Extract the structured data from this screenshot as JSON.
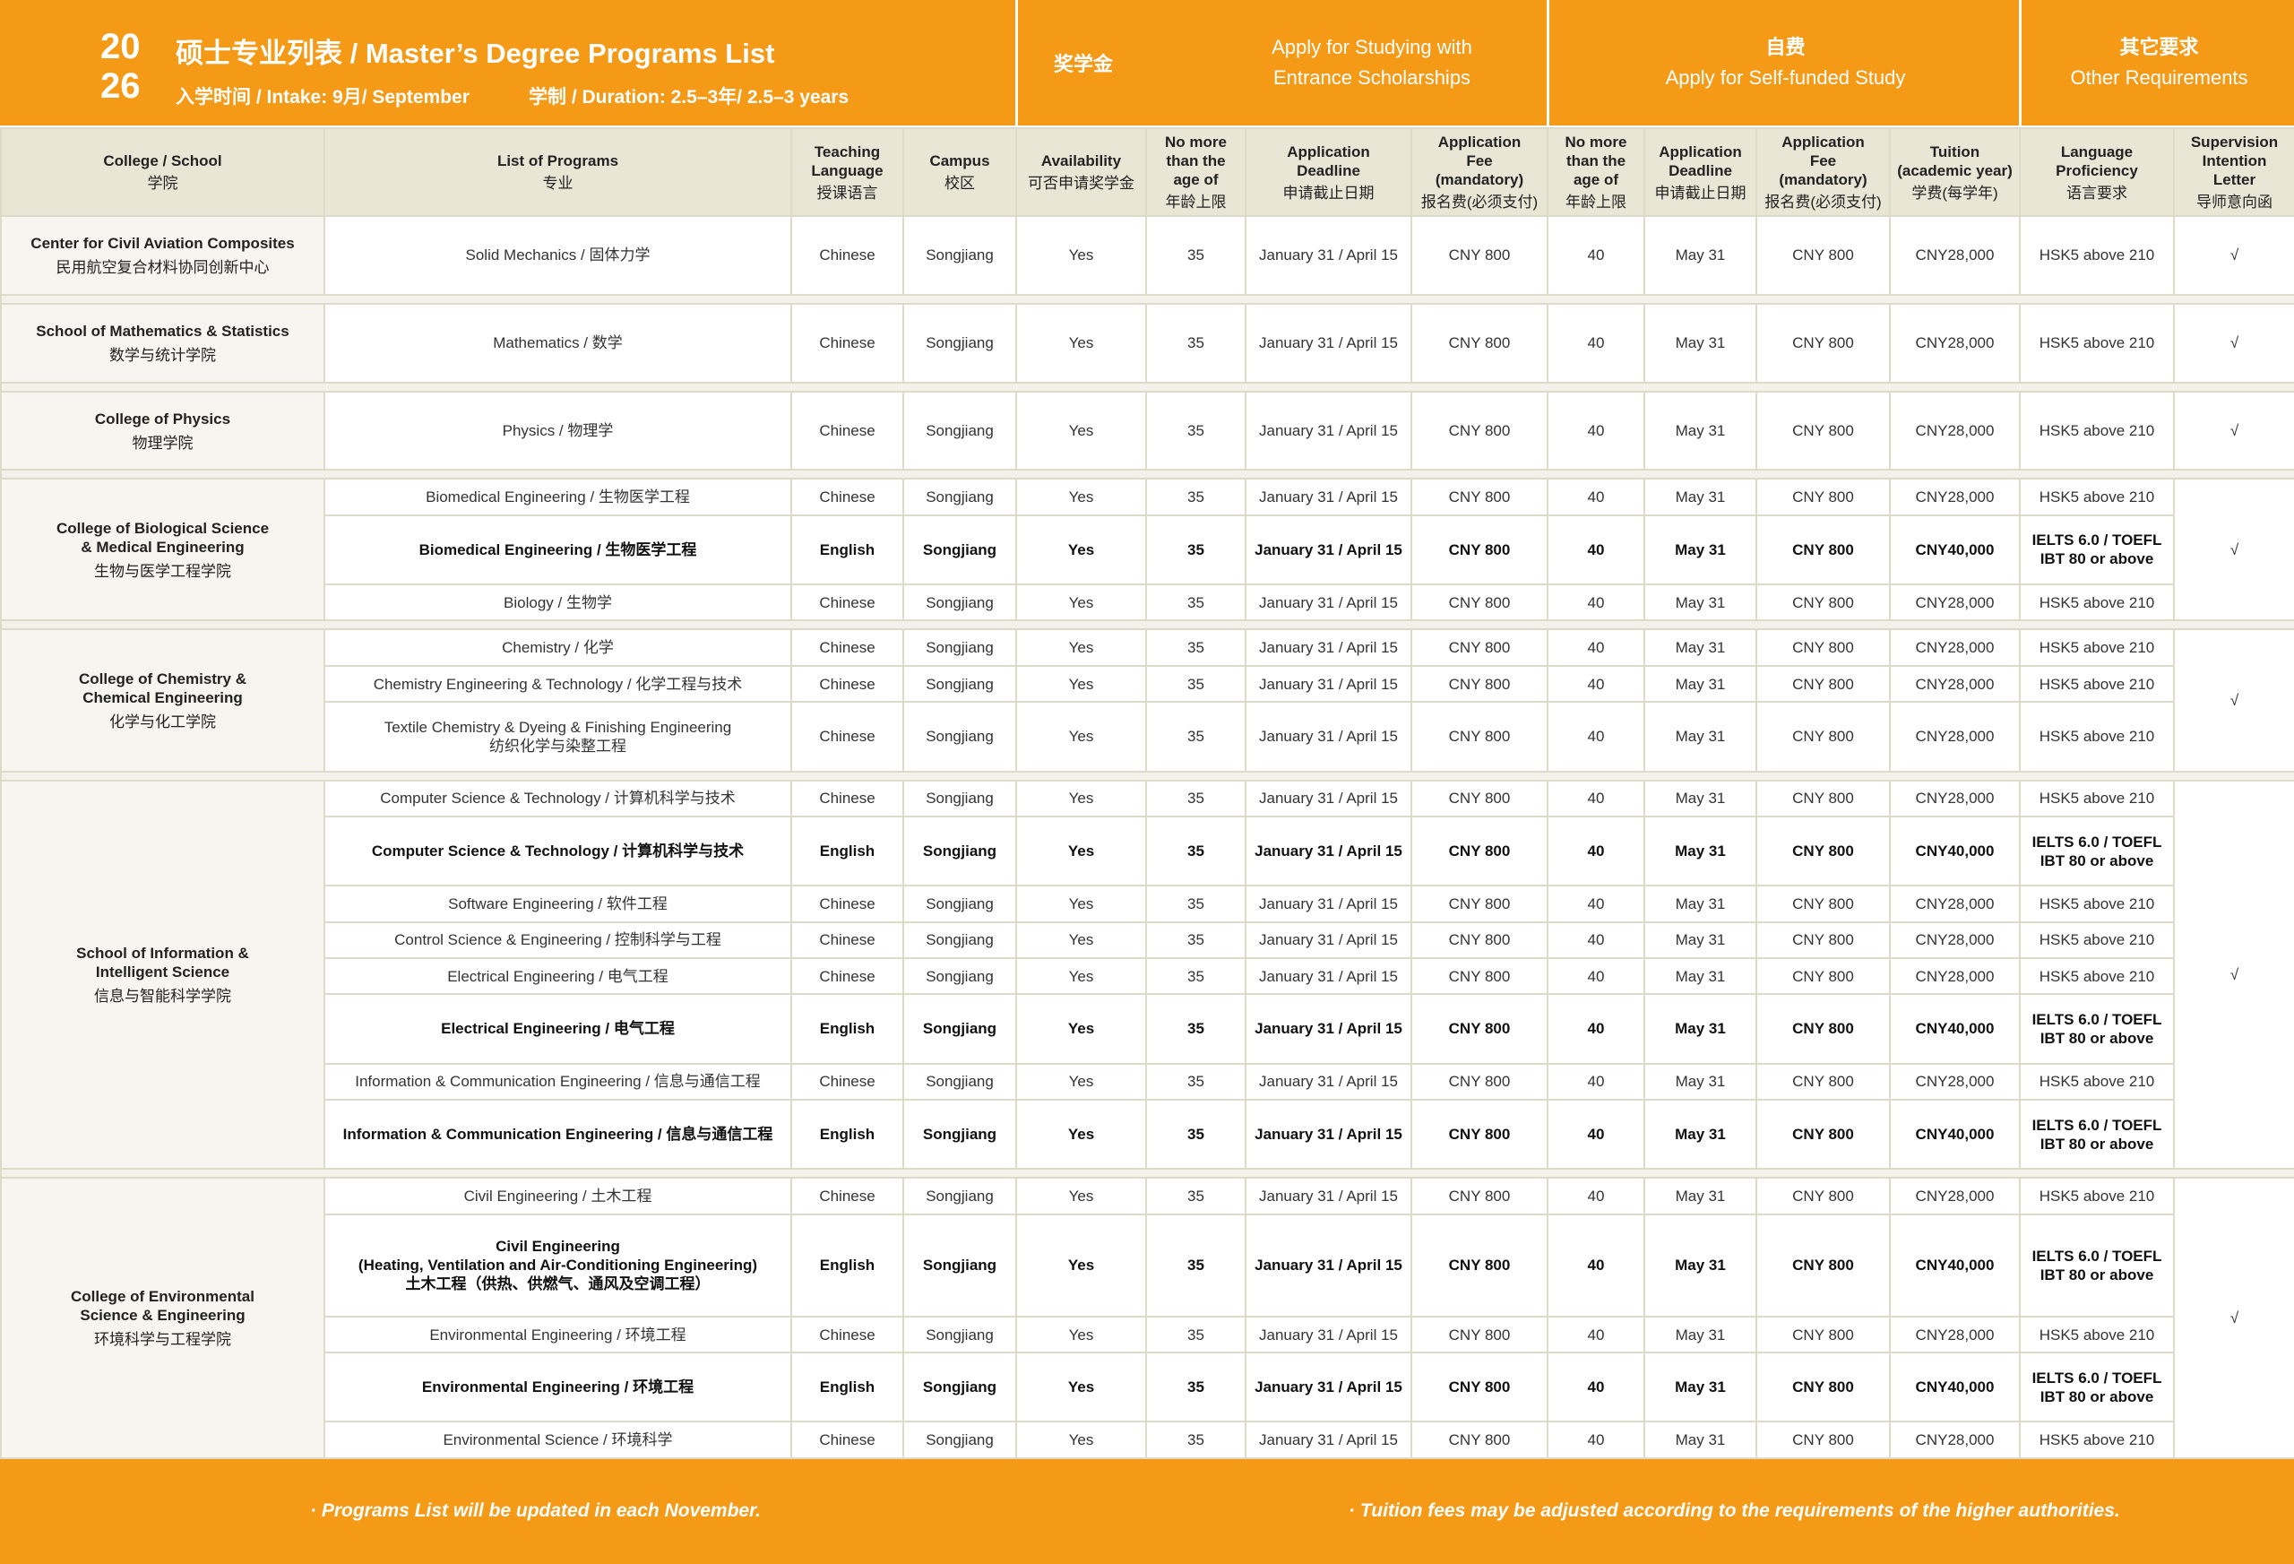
{
  "header": {
    "year_top": "20",
    "year_bottom": "26",
    "title": "硕士专业列表 / Master’s Degree Programs List",
    "intake": "入学时间 / Intake: 9月/ September",
    "duration": "学制 / Duration: 2.5–3年/ 2.5–3 years"
  },
  "group_headers": {
    "scholarship_cn": "奖学金",
    "scholarship_en": "Apply for Studying with\nEntrance Scholarships",
    "self_funded_cn": "自费",
    "self_funded_en": "Apply for Self-funded Study",
    "other_cn": "其它要求",
    "other_en": "Other Requirements"
  },
  "table": {
    "columns": [
      {
        "en": "College / School",
        "cn": "学院"
      },
      {
        "en": "List of Programs",
        "cn": "专业"
      },
      {
        "en": "Teaching\nLanguage",
        "cn": "授课语言"
      },
      {
        "en": "Campus",
        "cn": "校区"
      },
      {
        "en": "Availability",
        "cn": "可否申请奖学金"
      },
      {
        "en": "No more\nthan the\nage of",
        "cn": "年龄上限"
      },
      {
        "en": "Application\nDeadline",
        "cn": "申请截止日期"
      },
      {
        "en": "Application\nFee\n(mandatory)",
        "cn": "报名费(必须支付)"
      },
      {
        "en": "No more\nthan the\nage of",
        "cn": "年龄上限"
      },
      {
        "en": "Application\nDeadline",
        "cn": "申请截止日期"
      },
      {
        "en": "Application\nFee\n(mandatory)",
        "cn": "报名费(必须支付)"
      },
      {
        "en": "Tuition\n(academic year)",
        "cn": "学费(每学年)"
      },
      {
        "en": "Language\nProficiency",
        "cn": "语言要求"
      },
      {
        "en": "Supervision\nIntention\nLetter",
        "cn": "导师意向函"
      }
    ],
    "colleges": [
      {
        "name_en": "Center for Civil Aviation Composites",
        "name_cn": "民用航空复合材料协同创新中心",
        "letter": "√",
        "programs": [
          {
            "bold": false,
            "cells": [
              "Solid Mechanics / 固体力学",
              "Chinese",
              "Songjiang",
              "Yes",
              "35",
              "January 31 / April 15",
              "CNY 800",
              "40",
              "May 31",
              "CNY 800",
              "CNY28,000",
              "HSK5 above 210"
            ]
          }
        ]
      },
      {
        "name_en": "School of Mathematics & Statistics",
        "name_cn": "数学与统计学院",
        "letter": "√",
        "programs": [
          {
            "bold": false,
            "cells": [
              "Mathematics / 数学",
              "Chinese",
              "Songjiang",
              "Yes",
              "35",
              "January 31 / April 15",
              "CNY 800",
              "40",
              "May 31",
              "CNY 800",
              "CNY28,000",
              "HSK5 above 210"
            ]
          }
        ]
      },
      {
        "name_en": "College of Physics",
        "name_cn": "物理学院",
        "letter": "√",
        "programs": [
          {
            "bold": false,
            "cells": [
              "Physics / 物理学",
              "Chinese",
              "Songjiang",
              "Yes",
              "35",
              "January 31 / April 15",
              "CNY 800",
              "40",
              "May 31",
              "CNY 800",
              "CNY28,000",
              "HSK5 above 210"
            ]
          }
        ]
      },
      {
        "name_en": "College of Biological Science\n& Medical Engineering",
        "name_cn": "生物与医学工程学院",
        "letter": "√",
        "programs": [
          {
            "bold": false,
            "cells": [
              "Biomedical Engineering / 生物医学工程",
              "Chinese",
              "Songjiang",
              "Yes",
              "35",
              "January 31 / April 15",
              "CNY 800",
              "40",
              "May 31",
              "CNY 800",
              "CNY28,000",
              "HSK5 above 210"
            ]
          },
          {
            "bold": true,
            "cells": [
              "Biomedical Engineering / 生物医学工程",
              "English",
              "Songjiang",
              "Yes",
              "35",
              "January 31 / April 15",
              "CNY 800",
              "40",
              "May 31",
              "CNY 800",
              "CNY40,000",
              "IELTS 6.0 / TOEFL\nIBT 80 or above"
            ]
          },
          {
            "bold": false,
            "cells": [
              "Biology / 生物学",
              "Chinese",
              "Songjiang",
              "Yes",
              "35",
              "January 31 / April 15",
              "CNY 800",
              "40",
              "May 31",
              "CNY 800",
              "CNY28,000",
              "HSK5 above 210"
            ]
          }
        ]
      },
      {
        "name_en": "College of Chemistry &\nChemical Engineering",
        "name_cn": "化学与化工学院",
        "letter": "√",
        "programs": [
          {
            "bold": false,
            "cells": [
              "Chemistry / 化学",
              "Chinese",
              "Songjiang",
              "Yes",
              "35",
              "January 31 / April 15",
              "CNY 800",
              "40",
              "May 31",
              "CNY 800",
              "CNY28,000",
              "HSK5 above 210"
            ]
          },
          {
            "bold": false,
            "cells": [
              "Chemistry Engineering & Technology / 化学工程与技术",
              "Chinese",
              "Songjiang",
              "Yes",
              "35",
              "January 31 / April 15",
              "CNY 800",
              "40",
              "May 31",
              "CNY 800",
              "CNY28,000",
              "HSK5 above 210"
            ]
          },
          {
            "bold": false,
            "cells": [
              "Textile Chemistry & Dyeing & Finishing Engineering\n纺织化学与染整工程",
              "Chinese",
              "Songjiang",
              "Yes",
              "35",
              "January 31 / April 15",
              "CNY 800",
              "40",
              "May 31",
              "CNY 800",
              "CNY28,000",
              "HSK5 above 210"
            ]
          }
        ]
      },
      {
        "name_en": "School of Information &\nIntelligent Science",
        "name_cn": "信息与智能科学学院",
        "letter": "√",
        "programs": [
          {
            "bold": false,
            "cells": [
              "Computer Science & Technology / 计算机科学与技术",
              "Chinese",
              "Songjiang",
              "Yes",
              "35",
              "January 31 / April 15",
              "CNY 800",
              "40",
              "May 31",
              "CNY 800",
              "CNY28,000",
              "HSK5 above 210"
            ]
          },
          {
            "bold": true,
            "cells": [
              "Computer Science & Technology / 计算机科学与技术",
              "English",
              "Songjiang",
              "Yes",
              "35",
              "January 31 / April 15",
              "CNY 800",
              "40",
              "May 31",
              "CNY 800",
              "CNY40,000",
              "IELTS 6.0 / TOEFL\nIBT 80 or above"
            ]
          },
          {
            "bold": false,
            "cells": [
              "Software Engineering / 软件工程",
              "Chinese",
              "Songjiang",
              "Yes",
              "35",
              "January 31 / April 15",
              "CNY 800",
              "40",
              "May 31",
              "CNY 800",
              "CNY28,000",
              "HSK5 above 210"
            ]
          },
          {
            "bold": false,
            "cells": [
              "Control Science & Engineering / 控制科学与工程",
              "Chinese",
              "Songjiang",
              "Yes",
              "35",
              "January 31 / April 15",
              "CNY 800",
              "40",
              "May 31",
              "CNY 800",
              "CNY28,000",
              "HSK5 above 210"
            ]
          },
          {
            "bold": false,
            "cells": [
              "Electrical Engineering / 电气工程",
              "Chinese",
              "Songjiang",
              "Yes",
              "35",
              "January 31 / April 15",
              "CNY 800",
              "40",
              "May 31",
              "CNY 800",
              "CNY28,000",
              "HSK5 above 210"
            ]
          },
          {
            "bold": true,
            "cells": [
              "Electrical Engineering / 电气工程",
              "English",
              "Songjiang",
              "Yes",
              "35",
              "January 31 / April 15",
              "CNY 800",
              "40",
              "May 31",
              "CNY 800",
              "CNY40,000",
              "IELTS 6.0 / TOEFL\nIBT 80 or above"
            ]
          },
          {
            "bold": false,
            "cells": [
              "Information & Communication Engineering / 信息与通信工程",
              "Chinese",
              "Songjiang",
              "Yes",
              "35",
              "January 31 / April 15",
              "CNY 800",
              "40",
              "May 31",
              "CNY 800",
              "CNY28,000",
              "HSK5 above 210"
            ]
          },
          {
            "bold": true,
            "cells": [
              "Information & Communication Engineering / 信息与通信工程",
              "English",
              "Songjiang",
              "Yes",
              "35",
              "January 31 / April 15",
              "CNY 800",
              "40",
              "May 31",
              "CNY 800",
              "CNY40,000",
              "IELTS 6.0 / TOEFL\nIBT 80 or above"
            ]
          }
        ]
      },
      {
        "name_en": "College of Environmental\nScience & Engineering",
        "name_cn": "环境科学与工程学院",
        "letter": "√",
        "programs": [
          {
            "bold": false,
            "cells": [
              "Civil Engineering / 土木工程",
              "Chinese",
              "Songjiang",
              "Yes",
              "35",
              "January 31 / April 15",
              "CNY 800",
              "40",
              "May 31",
              "CNY 800",
              "CNY28,000",
              "HSK5 above 210"
            ]
          },
          {
            "bold": true,
            "cells": [
              "Civil Engineering\n(Heating, Ventilation and Air-Conditioning Engineering)\n土木工程（供热、供燃气、通风及空调工程）",
              "English",
              "Songjiang",
              "Yes",
              "35",
              "January 31 / April 15",
              "CNY 800",
              "40",
              "May 31",
              "CNY 800",
              "CNY40,000",
              "IELTS 6.0 / TOEFL\nIBT 80 or above"
            ]
          },
          {
            "bold": false,
            "cells": [
              "Environmental Engineering / 环境工程",
              "Chinese",
              "Songjiang",
              "Yes",
              "35",
              "January 31 / April 15",
              "CNY 800",
              "40",
              "May 31",
              "CNY 800",
              "CNY28,000",
              "HSK5 above 210"
            ]
          },
          {
            "bold": true,
            "cells": [
              "Environmental Engineering / 环境工程",
              "English",
              "Songjiang",
              "Yes",
              "35",
              "January 31 / April 15",
              "CNY 800",
              "40",
              "May 31",
              "CNY 800",
              "CNY40,000",
              "IELTS 6.0 / TOEFL\nIBT 80 or above"
            ]
          },
          {
            "bold": false,
            "cells": [
              "Environmental Science / 环境科学",
              "Chinese",
              "Songjiang",
              "Yes",
              "35",
              "January 31 / April 15",
              "CNY 800",
              "40",
              "May 31",
              "CNY 800",
              "CNY28,000",
              "HSK5 above 210"
            ]
          }
        ]
      }
    ]
  },
  "footer": {
    "note_left": "· Programs List will be updated in each November.",
    "note_right": "· Tuition fees may be adjusted according to the requirements of the higher authorities."
  }
}
